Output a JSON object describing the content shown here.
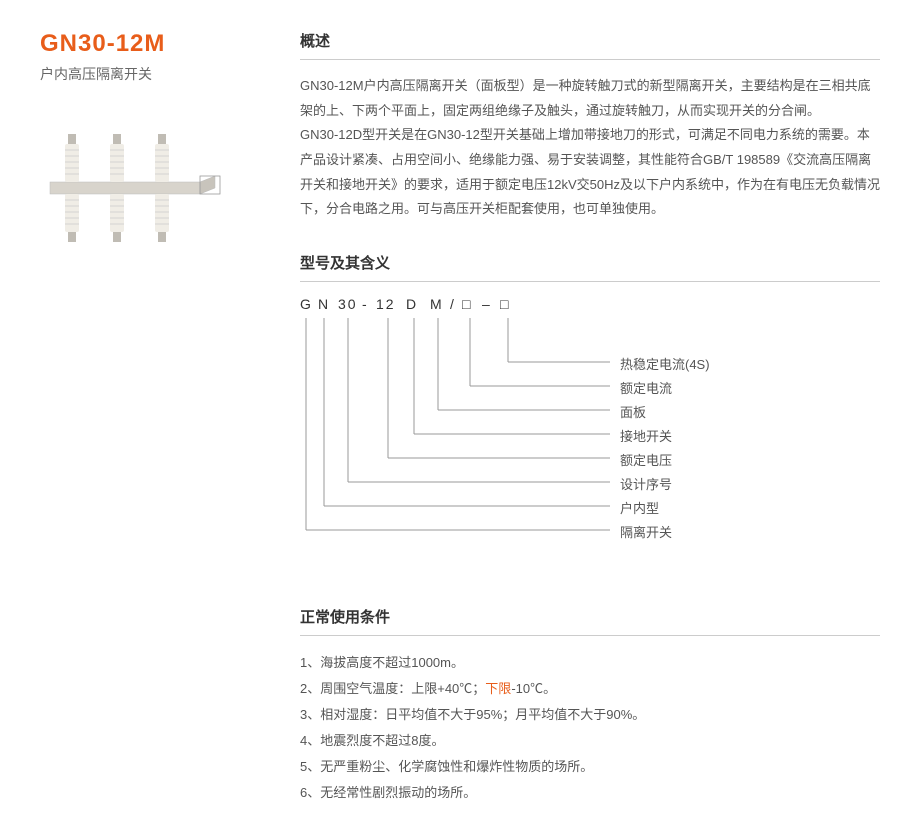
{
  "product": {
    "title": "GN30-12M",
    "subtitle": "户内高压隔离开关"
  },
  "overview": {
    "header": "概述",
    "text": "GN30-12M户内高压隔离开关（面板型）是一种旋转触刀式的新型隔离开关，主要结构是在三相共底架的上、下两个平面上，固定两组绝缘子及触头，通过旋转触刀，从而实现开关的分合闸。\nGN30-12D型开关是在GN30-12型开关基础上增加带接地刀的形式，可满足不同电力系统的需要。本产品设计紧凑、占用空间小、绝缘能力强、易于安装调整，其性能符合GB/T 198589《交流高压隔离开关和接地开关》的要求，适用于额定电压12kV交50Hz及以下户内系统中，作为在有电压无负载情况下，分合电路之用。可与高压开关柜配套使用，也可单独使用。"
  },
  "model": {
    "header": "型号及其含义",
    "code_parts": [
      "G",
      "N",
      "30",
      "-",
      "12",
      "D",
      "M",
      "/",
      "□",
      "–",
      "□"
    ],
    "labels": [
      "热稳定电流(4S)",
      "额定电流",
      "面板",
      "接地开关",
      "额定电压",
      "设计序号",
      "户内型",
      "隔离开关"
    ]
  },
  "conditions": {
    "header": "正常使用条件",
    "items": [
      "1、海拔高度不超过1000m。",
      "2、周围空气温度：上限+40℃；",
      "3、相对湿度：日平均值不大于95%；月平均值不大于90%。",
      "4、地震烈度不超过8度。",
      "5、无严重粉尘、化学腐蚀性和爆炸性物质的场所。",
      "6、无经常性剧烈振动的场所。"
    ],
    "item2_highlight": "下限",
    "item2_suffix": "-10℃。"
  },
  "colors": {
    "accent": "#e85d1a",
    "text": "#555555",
    "heading": "#333333",
    "border": "#cccccc",
    "line": "#999999"
  }
}
